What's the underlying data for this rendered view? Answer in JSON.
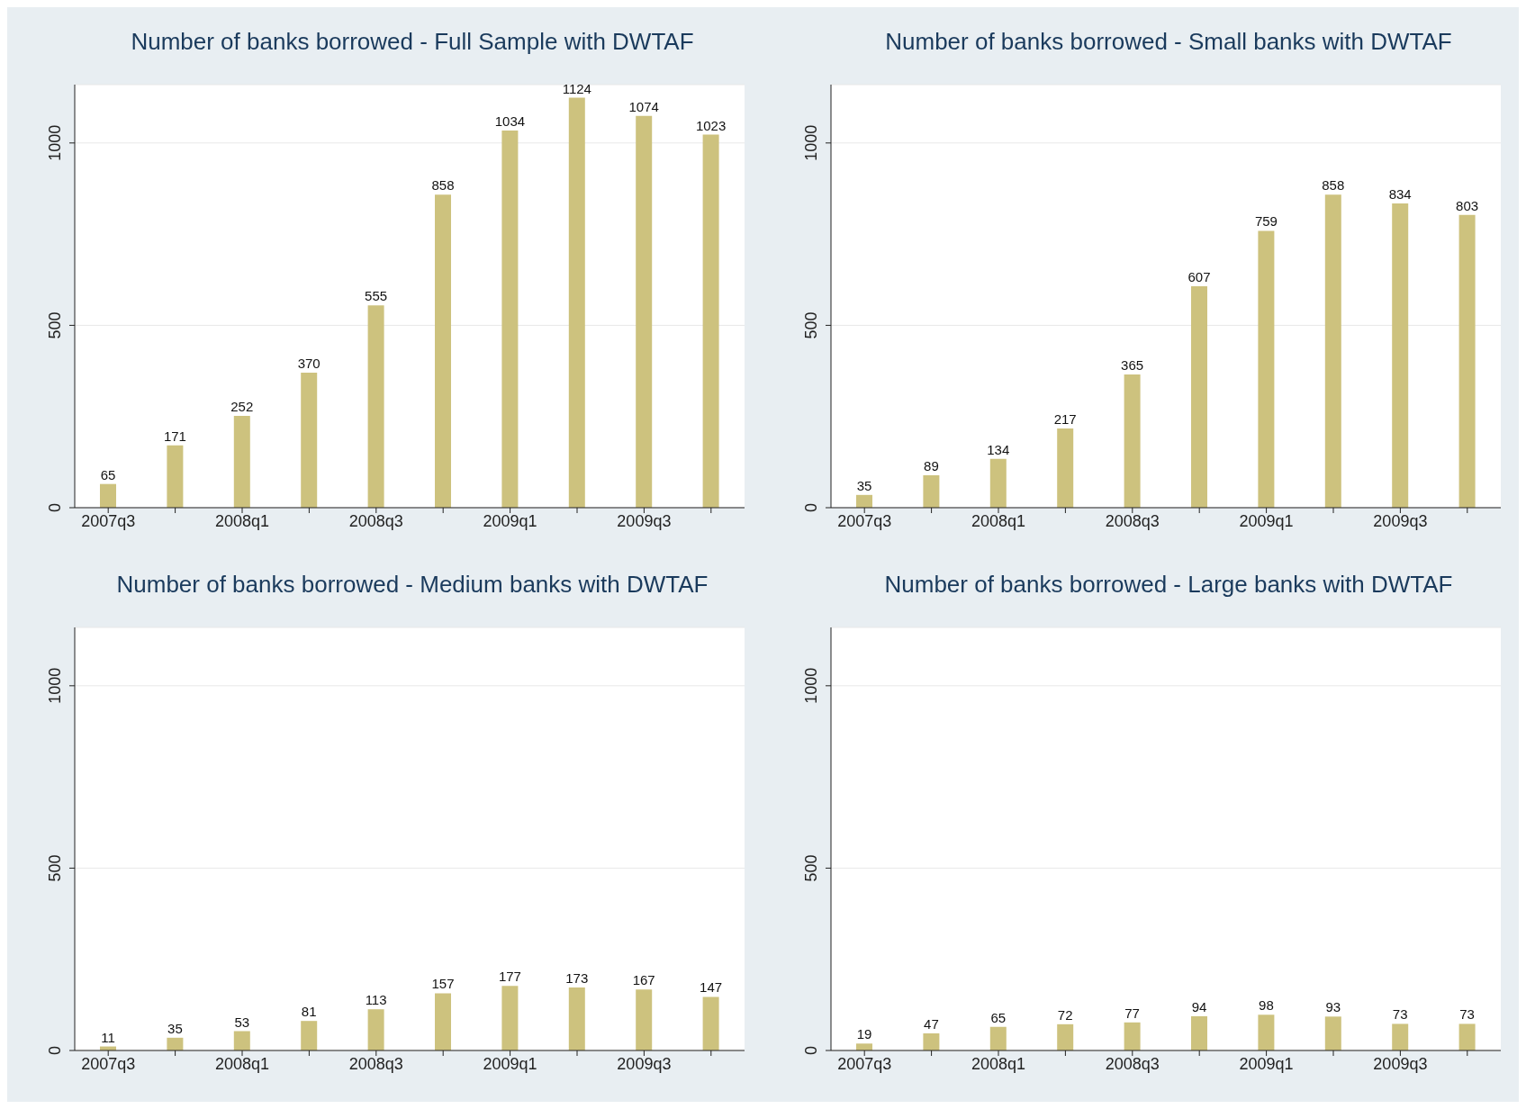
{
  "chart_data": [
    {
      "type": "bar",
      "title": "Number of banks borrowed - Full Sample with DWTAF",
      "categories": [
        "2007q3",
        null,
        "2008q1",
        null,
        "2008q3",
        null,
        "2009q1",
        null,
        "2009q3",
        null
      ],
      "values": [
        65,
        171,
        252,
        370,
        555,
        858,
        1034,
        1124,
        1074,
        1023
      ],
      "color": "#cdc27e",
      "ylim": [
        0,
        1160
      ],
      "yticks": [
        0,
        500,
        1000
      ],
      "grid": "y",
      "data_labels": true
    },
    {
      "type": "bar",
      "title": "Number of banks borrowed - Small banks with DWTAF",
      "categories": [
        "2007q3",
        null,
        "2008q1",
        null,
        "2008q3",
        null,
        "2009q1",
        null,
        "2009q3",
        null
      ],
      "values": [
        35,
        89,
        134,
        217,
        365,
        607,
        759,
        858,
        834,
        803
      ],
      "color": "#cdc27e",
      "ylim": [
        0,
        1160
      ],
      "yticks": [
        0,
        500,
        1000
      ],
      "grid": "y",
      "data_labels": true
    },
    {
      "type": "bar",
      "title": "Number of banks borrowed - Medium banks with DWTAF",
      "categories": [
        "2007q3",
        null,
        "2008q1",
        null,
        "2008q3",
        null,
        "2009q1",
        null,
        "2009q3",
        null
      ],
      "values": [
        11,
        35,
        53,
        81,
        113,
        157,
        177,
        173,
        167,
        147
      ],
      "color": "#cdc27e",
      "ylim": [
        0,
        1160
      ],
      "yticks": [
        0,
        500,
        1000
      ],
      "grid": "y",
      "data_labels": true
    },
    {
      "type": "bar",
      "title": "Number of banks borrowed - Large banks with DWTAF",
      "categories": [
        "2007q3",
        null,
        "2008q1",
        null,
        "2008q3",
        null,
        "2009q1",
        null,
        "2009q3",
        null
      ],
      "values": [
        19,
        47,
        65,
        72,
        77,
        94,
        98,
        93,
        73,
        73
      ],
      "color": "#cdc27e",
      "ylim": [
        0,
        1160
      ],
      "yticks": [
        0,
        500,
        1000
      ],
      "grid": "y",
      "data_labels": true
    }
  ]
}
